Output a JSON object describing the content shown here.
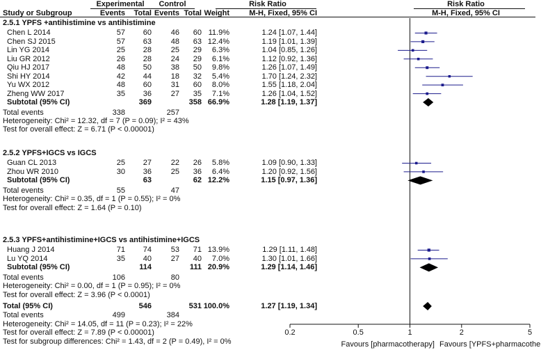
{
  "header": {
    "experimental": "Experimental",
    "control": "Control",
    "risk_ratio": "Risk Ratio",
    "risk_ratio_right": "Risk Ratio",
    "study": "Study or Subgroup",
    "events": "Events",
    "total": "Total",
    "events2": "Events",
    "total2": "Total",
    "weight": "Weight",
    "method": "M-H, Fixed, 95% CI",
    "method_right": "M-H, Fixed, 95% CI"
  },
  "groups": [
    {
      "title": "2.5.1 YPFS +antihistimine vs antihistimine",
      "studies": [
        {
          "name": "Chen L 2014",
          "e_ev": "57",
          "e_tot": "60",
          "c_ev": "46",
          "c_tot": "60",
          "weight": "11.9%",
          "ci": "1.24 [1.07, 1.44]"
        },
        {
          "name": "Chen SJ 2015",
          "e_ev": "57",
          "e_tot": "63",
          "c_ev": "48",
          "c_tot": "63",
          "weight": "12.4%",
          "ci": "1.19 [1.01, 1.39]"
        },
        {
          "name": "Lin YG 2014",
          "e_ev": "25",
          "e_tot": "28",
          "c_ev": "25",
          "c_tot": "29",
          "weight": "6.3%",
          "ci": "1.04 [0.85, 1.26]"
        },
        {
          "name": "Liu GR 2012",
          "e_ev": "26",
          "e_tot": "28",
          "c_ev": "24",
          "c_tot": "29",
          "weight": "6.1%",
          "ci": "1.12 [0.92, 1.36]"
        },
        {
          "name": "Qiu HJ 2017",
          "e_ev": "48",
          "e_tot": "50",
          "c_ev": "38",
          "c_tot": "50",
          "weight": "9.8%",
          "ci": "1.26 [1.07, 1.49]"
        },
        {
          "name": "Shi HY 2014",
          "e_ev": "42",
          "e_tot": "44",
          "c_ev": "18",
          "c_tot": "32",
          "weight": "5.4%",
          "ci": "1.70 [1.24, 2.32]"
        },
        {
          "name": "Yu WX 2012",
          "e_ev": "48",
          "e_tot": "60",
          "c_ev": "31",
          "c_tot": "60",
          "weight": "8.0%",
          "ci": "1.55 [1.18, 2.04]"
        },
        {
          "name": "Zheng WW 2017",
          "e_ev": "35",
          "e_tot": "36",
          "c_ev": "27",
          "c_tot": "35",
          "weight": "7.1%",
          "ci": "1.26 [1.04, 1.52]"
        }
      ],
      "subtotal": {
        "label": "Subtotal (95% CI)",
        "e_tot": "369",
        "c_tot": "358",
        "weight": "66.9%",
        "ci": "1.28 [1.19, 1.37]"
      },
      "total_events": {
        "label": "Total events",
        "e": "338",
        "c": "257"
      },
      "heterogeneity": "Heterogeneity: Chi² = 12.32, df = 7 (P = 0.09); I² = 43%",
      "overall": "Test for overall effect: Z = 6.71 (P < 0.00001)"
    },
    {
      "title": "2.5.2 YPFS+IGCS vs IGCS",
      "studies": [
        {
          "name": "Guan CL 2013",
          "e_ev": "25",
          "e_tot": "27",
          "c_ev": "22",
          "c_tot": "26",
          "weight": "5.8%",
          "ci": "1.09 [0.90, 1.33]"
        },
        {
          "name": "Zhou WR 2010",
          "e_ev": "30",
          "e_tot": "36",
          "c_ev": "25",
          "c_tot": "36",
          "weight": "6.4%",
          "ci": "1.20 [0.92, 1.56]"
        }
      ],
      "subtotal": {
        "label": "Subtotal (95% CI)",
        "e_tot": "63",
        "c_tot": "62",
        "weight": "12.2%",
        "ci": "1.15 [0.97, 1.36]"
      },
      "total_events": {
        "label": "Total events",
        "e": "55",
        "c": "47"
      },
      "heterogeneity": "Heterogeneity: Chi² = 0.35, df = 1 (P = 0.55); I² = 0%",
      "overall": "Test for overall effect: Z = 1.64 (P = 0.10)"
    },
    {
      "title": "2.5.3 YPFS+antihistimine+IGCS vs antihistimine+IGCS",
      "studies": [
        {
          "name": "Huang J 2014",
          "e_ev": "71",
          "e_tot": "74",
          "c_ev": "53",
          "c_tot": "71",
          "weight": "13.9%",
          "ci": "1.29 [1.11, 1.48]"
        },
        {
          "name": "Lu YQ 2014",
          "e_ev": "35",
          "e_tot": "40",
          "c_ev": "27",
          "c_tot": "40",
          "weight": "7.0%",
          "ci": "1.30 [1.01, 1.66]"
        }
      ],
      "subtotal": {
        "label": "Subtotal (95% CI)",
        "e_tot": "114",
        "c_tot": "111",
        "weight": "20.9%",
        "ci": "1.29 [1.14, 1.46]"
      },
      "total_events": {
        "label": "Total events",
        "e": "106",
        "c": "80"
      },
      "heterogeneity": "Heterogeneity: Chi² = 0.00, df = 1 (P = 0.95); I² = 0%",
      "overall": "Test for overall effect: Z = 3.96 (P < 0.0001)"
    }
  ],
  "total": {
    "label": "Total (95% CI)",
    "e_tot": "546",
    "c_tot": "531",
    "weight": "100.0%",
    "ci": "1.27 [1.19, 1.34]",
    "events_label": "Total events",
    "e_ev": "499",
    "c_ev": "384",
    "heterogeneity": "Heterogeneity: Chi² = 14.05, df = 11 (P = 0.23); I² = 22%",
    "overall": "Test for overall effect: Z = 7.89 (P < 0.00001)",
    "subgroup": "Test for subgroup differences: Chi² = 1.43, df = 2 (P = 0.49), I² = 0%"
  },
  "axis": {
    "ticks": [
      "0.2",
      "0.5",
      "1",
      "2",
      "5"
    ],
    "favours_left": "Favours [pharmacotherapy]",
    "favours_right": "Favours [YPFS+pharmacotherapy]"
  },
  "chart_data": {
    "type": "forest",
    "scale": "log",
    "xlim": [
      0.2,
      5
    ],
    "null_line": 1,
    "marker_color": "#1a1a8c",
    "studies": [
      {
        "name": "Chen L 2014",
        "rr": 1.24,
        "lo": 1.07,
        "hi": 1.44,
        "weight": 11.9
      },
      {
        "name": "Chen SJ 2015",
        "rr": 1.19,
        "lo": 1.01,
        "hi": 1.39,
        "weight": 12.4
      },
      {
        "name": "Lin YG 2014",
        "rr": 1.04,
        "lo": 0.85,
        "hi": 1.26,
        "weight": 6.3
      },
      {
        "name": "Liu GR 2012",
        "rr": 1.12,
        "lo": 0.92,
        "hi": 1.36,
        "weight": 6.1
      },
      {
        "name": "Qiu HJ 2017",
        "rr": 1.26,
        "lo": 1.07,
        "hi": 1.49,
        "weight": 9.8
      },
      {
        "name": "Shi HY 2014",
        "rr": 1.7,
        "lo": 1.24,
        "hi": 2.32,
        "weight": 5.4
      },
      {
        "name": "Yu WX 2012",
        "rr": 1.55,
        "lo": 1.18,
        "hi": 2.04,
        "weight": 8.0
      },
      {
        "name": "Zheng WW 2017",
        "rr": 1.26,
        "lo": 1.04,
        "hi": 1.52,
        "weight": 7.1
      },
      {
        "name": "Guan CL 2013",
        "rr": 1.09,
        "lo": 0.9,
        "hi": 1.33,
        "weight": 5.8
      },
      {
        "name": "Zhou WR 2010",
        "rr": 1.2,
        "lo": 0.92,
        "hi": 1.56,
        "weight": 6.4
      },
      {
        "name": "Huang J 2014",
        "rr": 1.29,
        "lo": 1.11,
        "hi": 1.48,
        "weight": 13.9
      },
      {
        "name": "Lu YQ 2014",
        "rr": 1.3,
        "lo": 1.01,
        "hi": 1.66,
        "weight": 7.0
      }
    ],
    "diamonds": [
      {
        "name": "Subtotal 2.5.1",
        "rr": 1.28,
        "lo": 1.19,
        "hi": 1.37
      },
      {
        "name": "Subtotal 2.5.2",
        "rr": 1.15,
        "lo": 0.97,
        "hi": 1.36
      },
      {
        "name": "Subtotal 2.5.3",
        "rr": 1.29,
        "lo": 1.14,
        "hi": 1.46
      },
      {
        "name": "Total",
        "rr": 1.27,
        "lo": 1.19,
        "hi": 1.34
      }
    ]
  }
}
